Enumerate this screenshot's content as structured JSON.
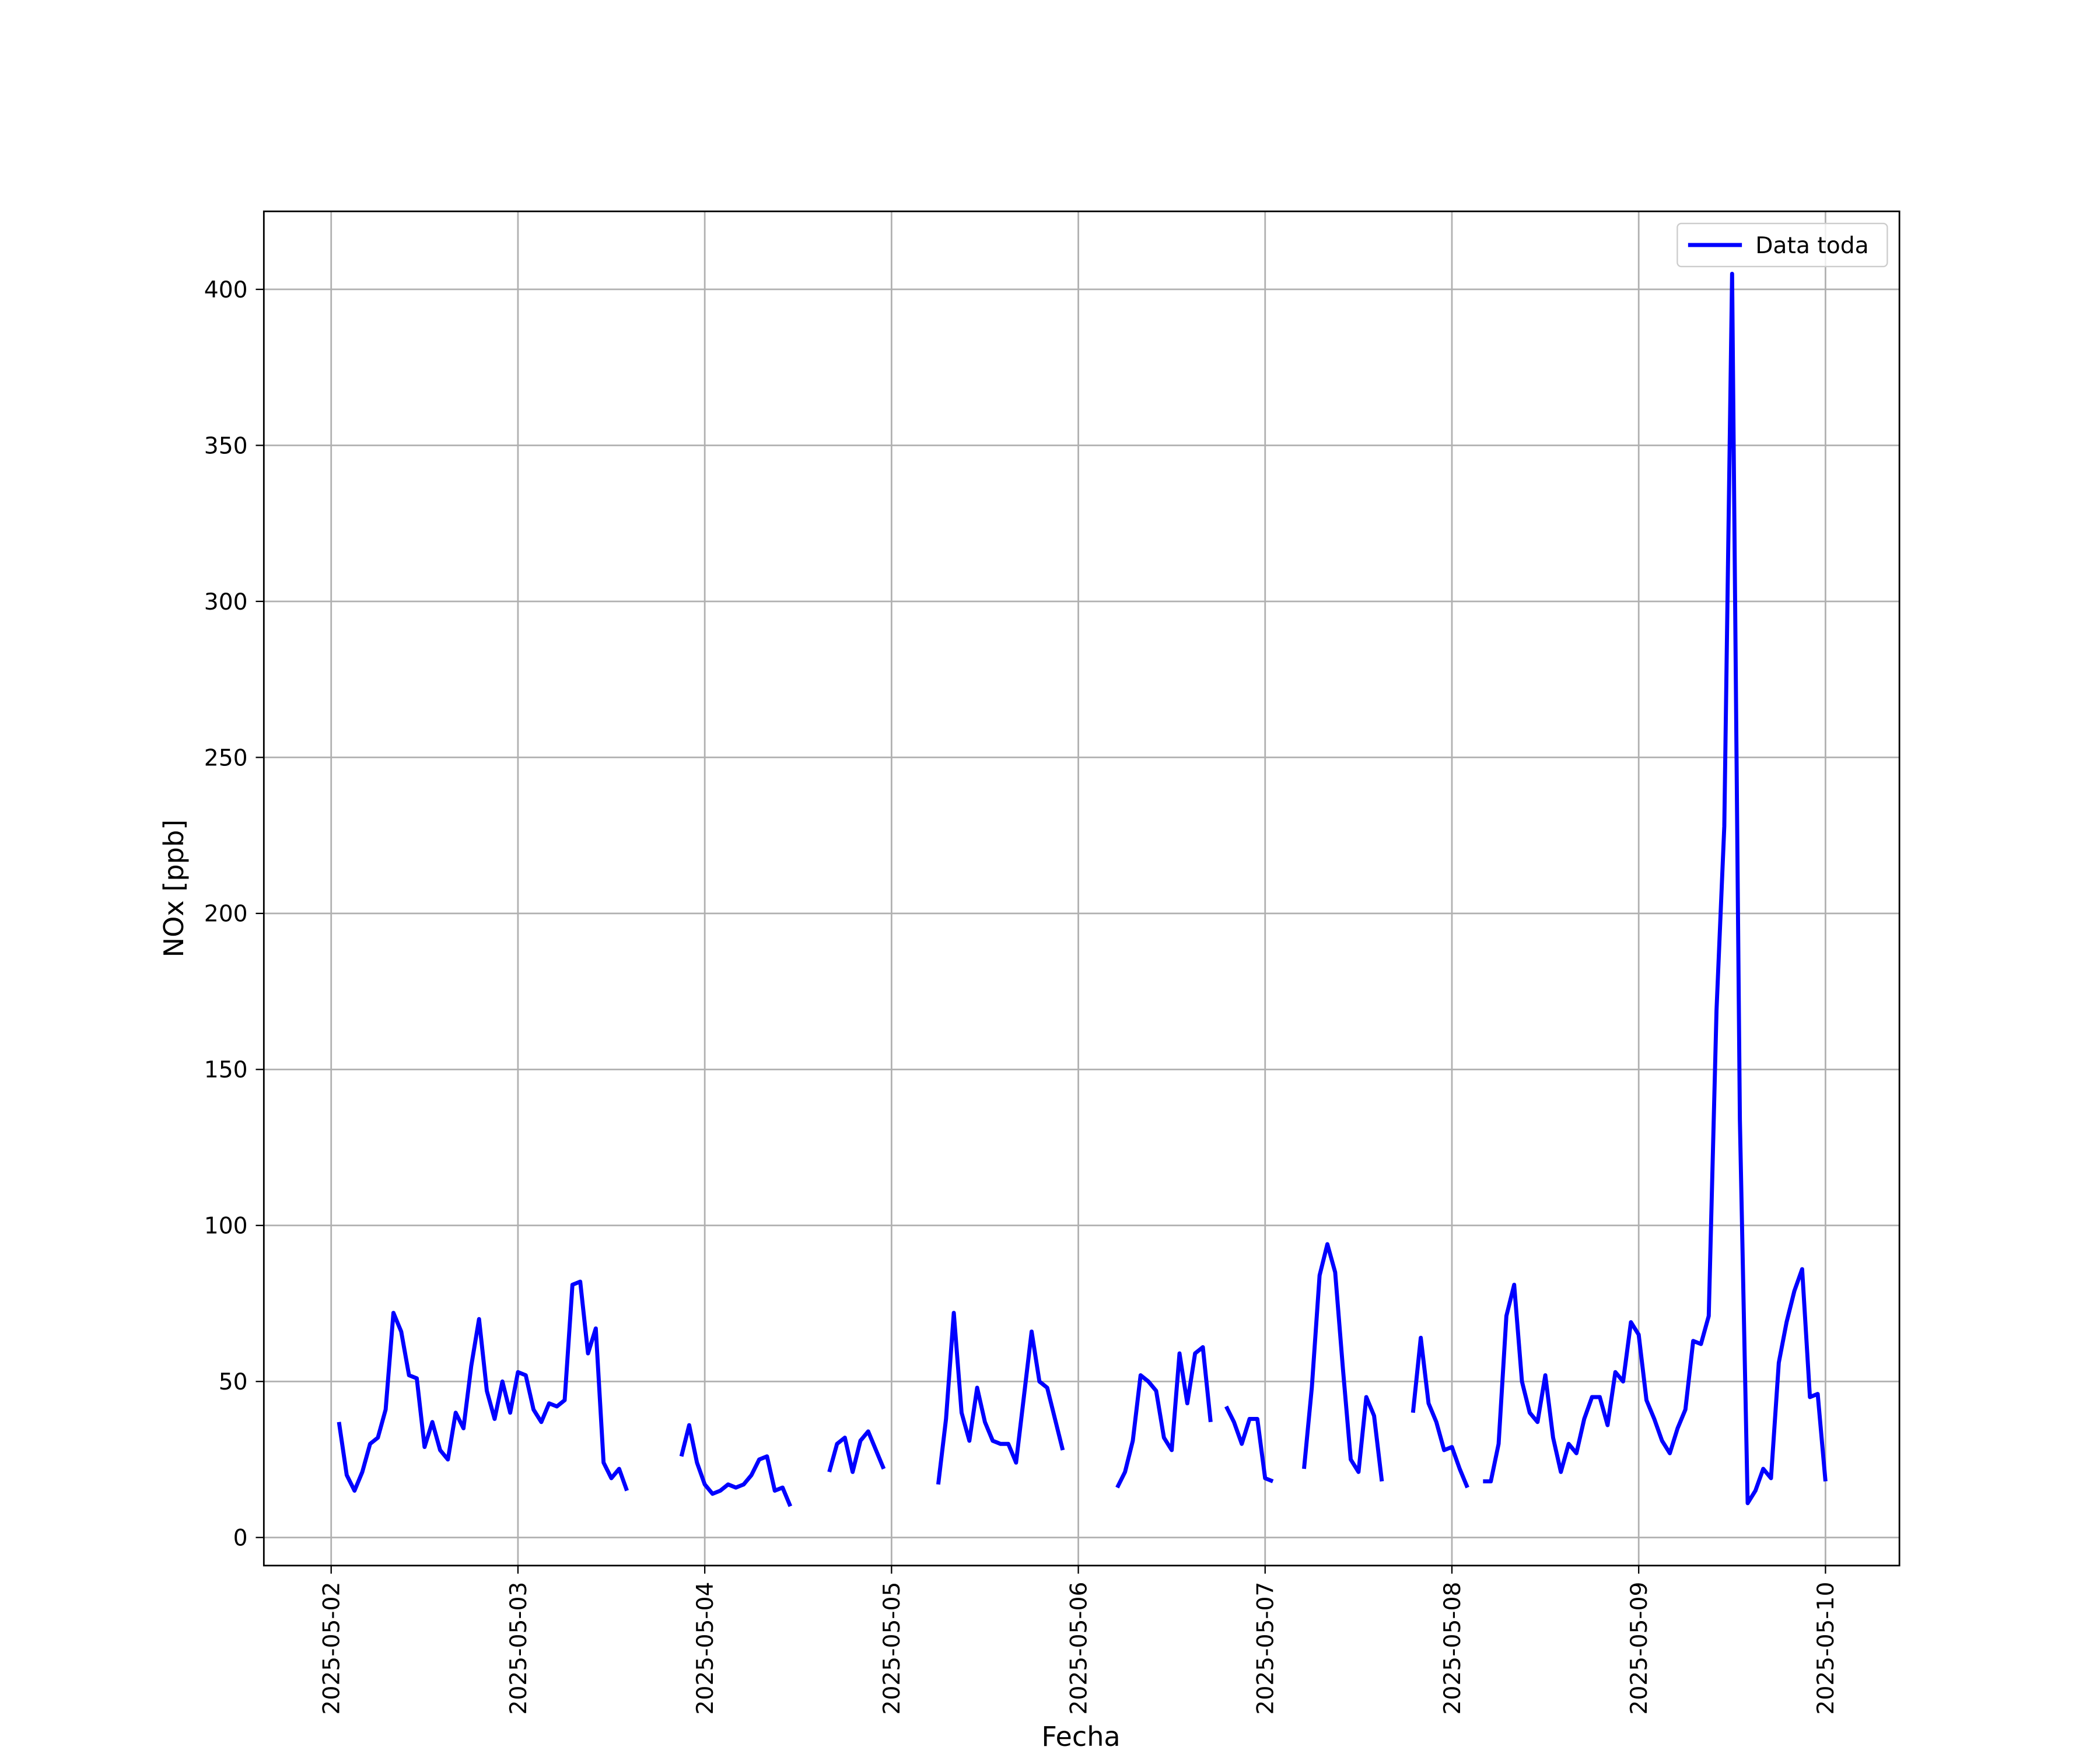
{
  "chart_data": {
    "type": "line",
    "xlabel": "Fecha",
    "ylabel": "NOx [ppb]",
    "x": [
      "2025-05-02 01:00",
      "2025-05-02 02:00",
      "2025-05-02 03:00",
      "2025-05-02 04:00",
      "2025-05-02 05:00",
      "2025-05-02 06:00",
      "2025-05-02 07:00",
      "2025-05-02 08:00",
      "2025-05-02 09:00",
      "2025-05-02 10:00",
      "2025-05-02 11:00",
      "2025-05-02 12:00",
      "2025-05-02 13:00",
      "2025-05-02 14:00",
      "2025-05-02 15:00",
      "2025-05-02 16:00",
      "2025-05-02 17:00",
      "2025-05-02 18:00",
      "2025-05-02 19:00",
      "2025-05-02 20:00",
      "2025-05-02 21:00",
      "2025-05-02 22:00",
      "2025-05-02 23:00",
      "2025-05-03 00:00",
      "2025-05-03 01:00",
      "2025-05-03 02:00",
      "2025-05-03 03:00",
      "2025-05-03 04:00",
      "2025-05-03 05:00",
      "2025-05-03 06:00",
      "2025-05-03 07:00",
      "2025-05-03 08:00",
      "2025-05-03 09:00",
      "2025-05-03 10:00",
      "2025-05-03 11:00",
      "2025-05-03 12:00",
      "2025-05-03 13:00",
      "2025-05-03 14:00",
      "2025-05-03 15:00",
      "2025-05-03 16:00",
      "2025-05-03 17:00",
      "2025-05-03 18:00",
      "2025-05-03 19:00",
      "2025-05-03 20:00",
      "2025-05-03 21:00",
      "2025-05-03 22:00",
      "2025-05-03 23:00",
      "2025-05-04 00:00",
      "2025-05-04 01:00",
      "2025-05-04 02:00",
      "2025-05-04 03:00",
      "2025-05-04 04:00",
      "2025-05-04 05:00",
      "2025-05-04 06:00",
      "2025-05-04 07:00",
      "2025-05-04 08:00",
      "2025-05-04 09:00",
      "2025-05-04 10:00",
      "2025-05-04 11:00",
      "2025-05-04 12:00",
      "2025-05-04 13:00",
      "2025-05-04 14:00",
      "2025-05-04 15:00",
      "2025-05-04 16:00",
      "2025-05-04 17:00",
      "2025-05-04 18:00",
      "2025-05-04 19:00",
      "2025-05-04 20:00",
      "2025-05-04 21:00",
      "2025-05-04 22:00",
      "2025-05-04 23:00",
      "2025-05-05 00:00",
      "2025-05-05 01:00",
      "2025-05-05 02:00",
      "2025-05-05 03:00",
      "2025-05-05 04:00",
      "2025-05-05 05:00",
      "2025-05-05 06:00",
      "2025-05-05 07:00",
      "2025-05-05 08:00",
      "2025-05-05 09:00",
      "2025-05-05 10:00",
      "2025-05-05 11:00",
      "2025-05-05 12:00",
      "2025-05-05 13:00",
      "2025-05-05 14:00",
      "2025-05-05 15:00",
      "2025-05-05 16:00",
      "2025-05-05 17:00",
      "2025-05-05 18:00",
      "2025-05-05 19:00",
      "2025-05-05 20:00",
      "2025-05-05 21:00",
      "2025-05-05 22:00",
      "2025-05-05 23:00",
      "2025-05-06 00:00",
      "2025-05-06 01:00",
      "2025-05-06 02:00",
      "2025-05-06 03:00",
      "2025-05-06 04:00",
      "2025-05-06 05:00",
      "2025-05-06 06:00",
      "2025-05-06 07:00",
      "2025-05-06 08:00",
      "2025-05-06 09:00",
      "2025-05-06 10:00",
      "2025-05-06 11:00",
      "2025-05-06 12:00",
      "2025-05-06 13:00",
      "2025-05-06 14:00",
      "2025-05-06 15:00",
      "2025-05-06 16:00",
      "2025-05-06 17:00",
      "2025-05-06 18:00",
      "2025-05-06 19:00",
      "2025-05-06 20:00",
      "2025-05-06 21:00",
      "2025-05-06 22:00",
      "2025-05-06 23:00",
      "2025-05-07 00:00",
      "2025-05-07 01:00",
      "2025-05-07 02:00",
      "2025-05-07 03:00",
      "2025-05-07 04:00",
      "2025-05-07 05:00",
      "2025-05-07 06:00",
      "2025-05-07 07:00",
      "2025-05-07 08:00",
      "2025-05-07 09:00",
      "2025-05-07 10:00",
      "2025-05-07 11:00",
      "2025-05-07 12:00",
      "2025-05-07 13:00",
      "2025-05-07 14:00",
      "2025-05-07 15:00",
      "2025-05-07 16:00",
      "2025-05-07 17:00",
      "2025-05-07 18:00",
      "2025-05-07 19:00",
      "2025-05-07 20:00",
      "2025-05-07 21:00",
      "2025-05-07 22:00",
      "2025-05-07 23:00",
      "2025-05-08 00:00",
      "2025-05-08 01:00",
      "2025-05-08 02:00",
      "2025-05-08 03:00",
      "2025-05-08 04:00",
      "2025-05-08 05:00",
      "2025-05-08 06:00",
      "2025-05-08 07:00",
      "2025-05-08 08:00",
      "2025-05-08 09:00",
      "2025-05-08 10:00",
      "2025-05-08 11:00",
      "2025-05-08 12:00",
      "2025-05-08 13:00",
      "2025-05-08 14:00",
      "2025-05-08 15:00",
      "2025-05-08 16:00",
      "2025-05-08 17:00",
      "2025-05-08 18:00",
      "2025-05-08 19:00",
      "2025-05-08 20:00",
      "2025-05-08 21:00",
      "2025-05-08 22:00",
      "2025-05-08 23:00",
      "2025-05-09 00:00",
      "2025-05-09 01:00",
      "2025-05-09 02:00",
      "2025-05-09 03:00",
      "2025-05-09 04:00",
      "2025-05-09 05:00",
      "2025-05-09 06:00",
      "2025-05-09 07:00",
      "2025-05-09 08:00",
      "2025-05-09 09:00",
      "2025-05-09 10:00",
      "2025-05-09 11:00",
      "2025-05-09 12:00",
      "2025-05-09 13:00",
      "2025-05-09 14:00",
      "2025-05-09 15:00",
      "2025-05-09 16:00",
      "2025-05-09 17:00",
      "2025-05-09 18:00",
      "2025-05-09 19:00",
      "2025-05-09 20:00",
      "2025-05-09 21:00",
      "2025-05-09 22:00",
      "2025-05-09 23:00",
      "2025-05-10 00:00"
    ],
    "series": [
      {
        "name": "Data toda",
        "color": "#0000ff",
        "values": [
          37,
          20,
          15,
          21,
          30,
          32,
          41,
          72,
          66,
          52,
          51,
          29,
          37,
          28,
          25,
          40,
          35,
          55,
          70,
          47,
          38,
          50,
          40,
          53,
          52,
          41,
          37,
          43,
          42,
          44,
          81,
          82,
          59,
          67,
          24,
          19,
          22,
          15,
          null,
          null,
          null,
          null,
          null,
          null,
          26,
          36,
          24,
          17,
          14,
          15,
          17,
          16,
          17,
          20,
          25,
          26,
          15,
          16,
          10,
          null,
          null,
          null,
          null,
          21,
          30,
          32,
          21,
          31,
          34,
          28,
          22,
          null,
          null,
          null,
          null,
          null,
          null,
          17,
          38,
          72,
          40,
          31,
          48,
          37,
          31,
          30,
          30,
          24,
          45,
          66,
          50,
          48,
          38,
          28,
          null,
          null,
          null,
          null,
          null,
          null,
          16,
          21,
          31,
          52,
          50,
          47,
          32,
          28,
          59,
          43,
          59,
          61,
          37,
          null,
          42,
          37,
          30,
          38,
          38,
          19,
          18,
          null,
          null,
          null,
          22,
          48,
          84,
          94,
          85,
          54,
          25,
          21,
          45,
          39,
          18,
          null,
          null,
          null,
          40,
          64,
          43,
          37,
          28,
          29,
          22,
          16,
          null,
          18,
          18,
          30,
          71,
          81,
          50,
          40,
          37,
          52,
          32,
          21,
          30,
          27,
          38,
          45,
          45,
          36,
          53,
          50,
          69,
          65,
          44,
          38,
          31,
          27,
          35,
          41,
          63,
          62,
          71,
          169,
          228,
          405,
          134,
          11,
          15,
          22,
          19,
          56,
          69,
          79,
          86,
          45,
          46,
          18
        ]
      }
    ],
    "xlim": [
      "2025-05-01 15:21",
      "2025-05-10 09:30"
    ],
    "xticks": [
      "2025-05-02",
      "2025-05-03",
      "2025-05-04",
      "2025-05-05",
      "2025-05-06",
      "2025-05-07",
      "2025-05-08",
      "2025-05-09",
      "2025-05-10"
    ],
    "ylim": [
      -9,
      425
    ],
    "yticks": [
      0,
      50,
      100,
      150,
      200,
      250,
      300,
      350,
      400
    ],
    "grid": true,
    "legend": "upper right"
  }
}
